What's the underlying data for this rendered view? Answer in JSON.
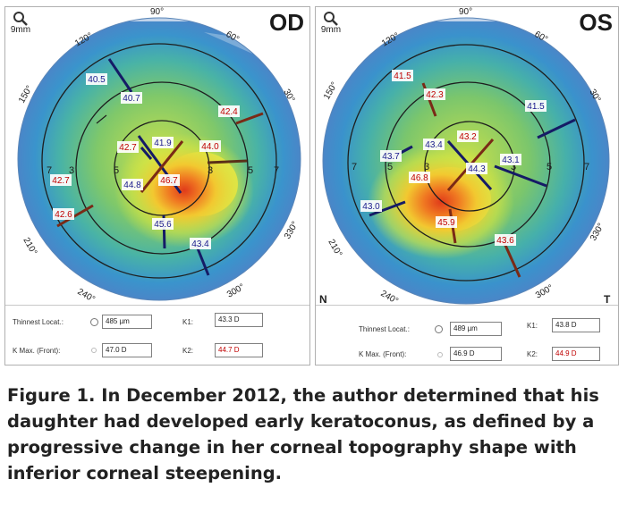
{
  "caption": "Figure 1.  In December 2012, the author determined that his daughter had developed early keratoconus, as defined by a progressive change in her corneal topography shape with inferior corneal steepening.",
  "panels": [
    {
      "eye": "OD",
      "scale": "9mm",
      "angles": [
        "90°",
        "60°",
        "30°",
        "330°",
        "300°",
        "240°",
        "210°",
        "150°",
        "120°"
      ],
      "ring_labels": [
        "3",
        "5",
        "7",
        "3",
        "5",
        "7"
      ],
      "readings": [
        {
          "value": "40.5",
          "tone": "blue"
        },
        {
          "value": "40.7",
          "tone": "blue"
        },
        {
          "value": "42.4",
          "tone": "red"
        },
        {
          "value": "42.7",
          "tone": "red"
        },
        {
          "value": "41.9",
          "tone": "blue"
        },
        {
          "value": "44.0",
          "tone": "red"
        },
        {
          "value": "42.7",
          "tone": "red"
        },
        {
          "value": "44.8",
          "tone": "blue"
        },
        {
          "value": "46.7",
          "tone": "red"
        },
        {
          "value": "42.6",
          "tone": "red"
        },
        {
          "value": "45.6",
          "tone": "blue"
        },
        {
          "value": "43.4",
          "tone": "blue"
        }
      ],
      "info": {
        "thinnest_label": "Thinnest Locat.:",
        "thinnest_value": "485 µm",
        "kmax_label": "K Max. (Front):",
        "kmax_value": "47.0 D",
        "k1_label": "K1:",
        "k1_value": "43.3 D",
        "k2_label": "K2:",
        "k2_value": "44.7 D"
      }
    },
    {
      "eye": "OS",
      "scale": "9mm",
      "angles": [
        "90°",
        "60°",
        "30°",
        "330°",
        "300°",
        "240°",
        "210°",
        "150°",
        "120°"
      ],
      "ring_labels": [
        "7",
        "5",
        "3",
        "3",
        "5",
        "7"
      ],
      "corner_letters": [
        "N",
        "T"
      ],
      "readings": [
        {
          "value": "41.5",
          "tone": "red"
        },
        {
          "value": "42.3",
          "tone": "red"
        },
        {
          "value": "41.5",
          "tone": "blue"
        },
        {
          "value": "43.4",
          "tone": "blue"
        },
        {
          "value": "43.2",
          "tone": "red"
        },
        {
          "value": "43.7",
          "tone": "blue"
        },
        {
          "value": "44.3",
          "tone": "blue"
        },
        {
          "value": "43.1",
          "tone": "blue"
        },
        {
          "value": "46.8",
          "tone": "red"
        },
        {
          "value": "43.0",
          "tone": "blue"
        },
        {
          "value": "45.9",
          "tone": "red"
        },
        {
          "value": "43.6",
          "tone": "red"
        }
      ],
      "info": {
        "thinnest_label": "Thinnest Locat.:",
        "thinnest_value": "489 µm",
        "kmax_label": "K Max. (Front):",
        "kmax_value": "46.9 D",
        "k1_label": "K1:",
        "k1_value": "43.8 D",
        "k2_label": "K2:",
        "k2_value": "44.9 D"
      }
    }
  ],
  "colors": {
    "steep": "#e8401c",
    "flat": "#3b8fc8",
    "mid": "#b7d43a",
    "red_text": "#c00000",
    "blue_text": "#1a1a8c",
    "red_mark": "#8b2a18",
    "blue_mark": "#1a237e"
  }
}
